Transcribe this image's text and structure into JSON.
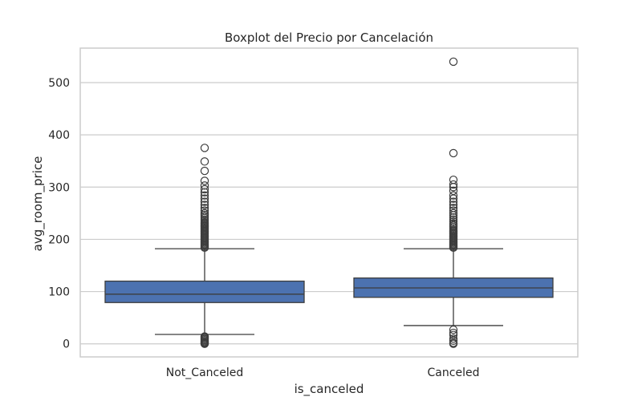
{
  "chart_data": {
    "type": "boxplot",
    "title": "Boxplot del Precio por Cancelación",
    "xlabel": "is_canceled",
    "ylabel": "avg_room_price",
    "ylim": [
      -25,
      566
    ],
    "y_ticks": [
      0,
      100,
      200,
      300,
      400,
      500
    ],
    "grid": true,
    "colors": {
      "box_fill": "#4c72b0",
      "line": "#3d3d3d",
      "grid": "#cccccc",
      "frame": "#cccccc"
    },
    "categories": [
      "Not_Canceled",
      "Canceled"
    ],
    "boxes": [
      {
        "category": "Not_Canceled",
        "whisker_low": 18,
        "q1": 79,
        "median": 95,
        "q3": 120,
        "whisker_high": 182,
        "outliers": [
          0,
          1,
          2,
          3,
          5,
          7,
          9,
          11,
          13,
          14,
          184,
          186,
          188,
          190,
          192,
          194,
          196,
          198,
          200,
          202,
          204,
          206,
          208,
          210,
          212,
          214,
          216,
          218,
          220,
          222,
          224,
          226,
          228,
          230,
          232,
          235,
          238,
          241,
          244,
          247,
          250,
          255,
          260,
          266,
          272,
          278,
          284,
          290,
          296,
          303,
          312,
          331,
          349,
          375
        ]
      },
      {
        "category": "Canceled",
        "whisker_low": 35,
        "q1": 89,
        "median": 107,
        "q3": 126,
        "whisker_high": 182,
        "outliers": [
          0,
          2,
          6,
          10,
          17,
          21,
          27,
          184,
          186,
          188,
          190,
          192,
          194,
          196,
          198,
          200,
          202,
          204,
          206,
          208,
          210,
          212,
          214,
          216,
          218,
          221,
          224,
          227,
          230,
          234,
          238,
          242,
          246,
          250,
          255,
          260,
          266,
          272,
          278,
          284,
          293,
          300,
          305,
          314,
          365,
          540
        ]
      }
    ]
  }
}
